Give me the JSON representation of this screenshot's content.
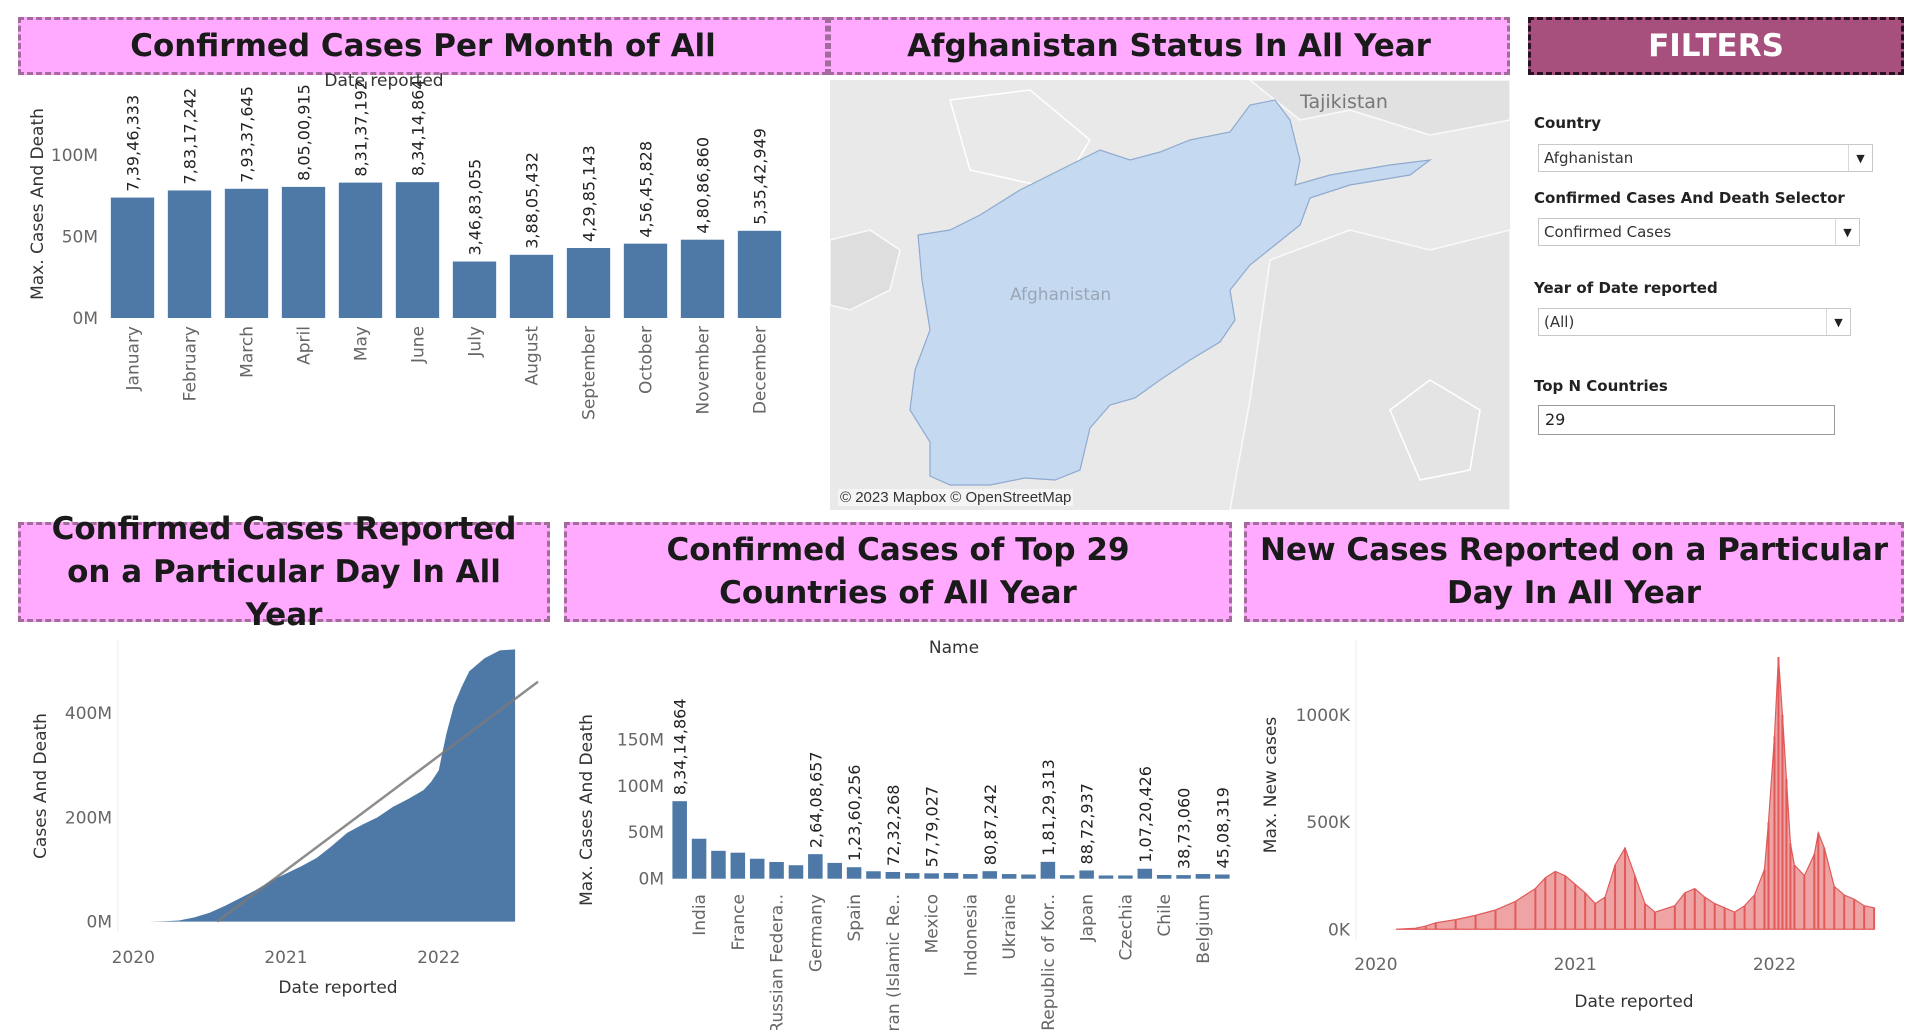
{
  "titles": {
    "monthly": "Confirmed Cases Per Month of All",
    "map": "Afghanistan Status In All Year",
    "filters": "FILTERS",
    "cumulative": "Confirmed Cases Reported on a Particular Day In All Year",
    "top": "Confirmed Cases of Top  29 Countries of All Year",
    "newcases": "New Cases Reported on a Particular Day In All Year"
  },
  "map": {
    "labels": {
      "country": "Afghanistan",
      "neighbor": "Tajikistan"
    },
    "attribution": "© 2023 Mapbox © OpenStreetMap",
    "colors": {
      "highlight": "#c5d9f1",
      "background": "#e9e9e9"
    }
  },
  "filters": {
    "country": {
      "label": "Country",
      "value": "Afghanistan"
    },
    "selector": {
      "label": "Confirmed Cases And Death Selector",
      "value": "Confirmed Cases"
    },
    "year": {
      "label": "Year of Date reported",
      "value": "(All)"
    },
    "topn": {
      "label": "Top N Countries",
      "value": "29"
    }
  },
  "colors": {
    "bar": "#4e79a7",
    "newcases": "#e05a5a",
    "trend": "#7a7a7a"
  },
  "chart_data": [
    {
      "id": "monthly",
      "type": "bar",
      "title": "Date reported",
      "xlabel": "",
      "ylabel": "Max. Cases And Death",
      "ylim": [
        0,
        140000000
      ],
      "yticks": [
        0,
        50000000,
        100000000
      ],
      "yticklabels": [
        "0M",
        "50M",
        "100M"
      ],
      "categories": [
        "January",
        "February",
        "March",
        "April",
        "May",
        "June",
        "July",
        "August",
        "September",
        "October",
        "November",
        "December"
      ],
      "values": [
        73946333,
        78317242,
        79337645,
        80500915,
        83137192,
        83414864,
        34683055,
        38805432,
        42985143,
        45645828,
        48086860,
        53542949
      ],
      "labels": [
        "7,39,46,333",
        "7,83,17,242",
        "7,93,37,645",
        "8,05,00,915",
        "8,31,37,192",
        "8,34,14,864",
        "3,46,83,055",
        "3,88,05,432",
        "4,29,85,143",
        "4,56,45,828",
        "4,80,86,860",
        "5,35,42,949"
      ]
    },
    {
      "id": "cumulative",
      "type": "area",
      "xlabel": "Date reported",
      "ylabel": "Cases And Death",
      "xlim": [
        2019.9,
        2022.65
      ],
      "ylim": [
        -20000000,
        540000000
      ],
      "xticks": [
        2020,
        2021,
        2022
      ],
      "xticklabels": [
        "2020",
        "2021",
        "2022"
      ],
      "yticks": [
        0,
        200000000,
        400000000
      ],
      "yticklabels": [
        "0M",
        "200M",
        "400M"
      ],
      "x": [
        2020.1,
        2020.2,
        2020.3,
        2020.4,
        2020.5,
        2020.6,
        2020.7,
        2020.8,
        2020.9,
        2021.0,
        2021.1,
        2021.2,
        2021.3,
        2021.4,
        2021.5,
        2021.6,
        2021.7,
        2021.8,
        2021.9,
        2021.95,
        2022.0,
        2022.05,
        2022.1,
        2022.15,
        2022.2,
        2022.3,
        2022.4,
        2022.5
      ],
      "y": [
        0,
        500000,
        2000000,
        8000000,
        17000000,
        30000000,
        45000000,
        60000000,
        78000000,
        92000000,
        106000000,
        122000000,
        145000000,
        170000000,
        186000000,
        200000000,
        220000000,
        235000000,
        252000000,
        268000000,
        290000000,
        360000000,
        415000000,
        450000000,
        480000000,
        505000000,
        520000000,
        522000000
      ],
      "trend": {
        "x": [
          2020.55,
          2022.65
        ],
        "y": [
          0,
          460000000
        ]
      }
    },
    {
      "id": "top",
      "type": "bar",
      "title": "Name",
      "xlabel": "",
      "ylabel": "Max. Cases And Death",
      "ylim": [
        -10000000,
        160000000
      ],
      "yticks": [
        0,
        50000000,
        100000000,
        150000000
      ],
      "yticklabels": [
        "0M",
        "50M",
        "100M",
        "150M"
      ],
      "categories": [
        "",
        "India",
        "",
        "France",
        "",
        "Russian Federa..",
        "",
        "Germany",
        "",
        "Spain",
        "",
        "Iran (Islamic Re..",
        "",
        "Mexico",
        "",
        "Indonesia",
        "",
        "Ukraine",
        "",
        "Republic of Kor..",
        "",
        "Japan",
        "",
        "Czechia",
        "",
        "Chile",
        "",
        "Belgium",
        ""
      ],
      "values": [
        83414864,
        43000000,
        30000000,
        28000000,
        21500000,
        18000000,
        14500000,
        26408657,
        17000000,
        12360256,
        8000000,
        7232268,
        6000000,
        5779027,
        6200000,
        5000000,
        8087242,
        5000000,
        4500000,
        18129313,
        3800000,
        8872937,
        3500000,
        3500000,
        10720426,
        4000000,
        3873060,
        5000000,
        4508319
      ],
      "labels": [
        "8,34,14,864",
        "",
        "",
        "",
        "",
        "",
        "",
        "2,64,08,657",
        "",
        "1,23,60,256",
        "",
        "72,32,268",
        "",
        "57,79,027",
        "",
        "",
        "80,87,242",
        "",
        "",
        "1,81,29,313",
        "",
        "88,72,937",
        "",
        "",
        "1,07,20,426",
        "",
        "38,73,060",
        "",
        "45,08,319"
      ]
    },
    {
      "id": "newcases",
      "type": "bar",
      "xlabel": "Date reported",
      "ylabel": "Max. New cases",
      "xlim": [
        2019.9,
        2022.65
      ],
      "ylim": [
        -50000,
        1350000
      ],
      "xticks": [
        2020,
        2021,
        2022
      ],
      "xticklabels": [
        "2020",
        "2021",
        "2022"
      ],
      "yticks": [
        0,
        500000,
        1000000
      ],
      "yticklabels": [
        "0K",
        "500K",
        "1000K"
      ],
      "x": [
        2020.1,
        2020.2,
        2020.25,
        2020.3,
        2020.4,
        2020.5,
        2020.6,
        2020.7,
        2020.8,
        2020.85,
        2020.9,
        2020.95,
        2021.0,
        2021.05,
        2021.1,
        2021.15,
        2021.2,
        2021.25,
        2021.3,
        2021.35,
        2021.4,
        2021.5,
        2021.55,
        2021.6,
        2021.65,
        2021.7,
        2021.75,
        2021.8,
        2021.85,
        2021.9,
        2021.95,
        2021.97,
        2022.0,
        2022.02,
        2022.04,
        2022.06,
        2022.08,
        2022.1,
        2022.15,
        2022.2,
        2022.22,
        2022.25,
        2022.3,
        2022.35,
        2022.4,
        2022.45,
        2022.5
      ],
      "y": [
        0,
        5000,
        15000,
        30000,
        45000,
        65000,
        90000,
        130000,
        190000,
        240000,
        270000,
        250000,
        210000,
        170000,
        120000,
        150000,
        300000,
        380000,
        250000,
        120000,
        80000,
        110000,
        170000,
        190000,
        150000,
        120000,
        100000,
        80000,
        110000,
        160000,
        280000,
        500000,
        900000,
        1270000,
        1000000,
        700000,
        400000,
        300000,
        250000,
        350000,
        450000,
        380000,
        200000,
        160000,
        140000,
        110000,
        100000
      ]
    }
  ]
}
